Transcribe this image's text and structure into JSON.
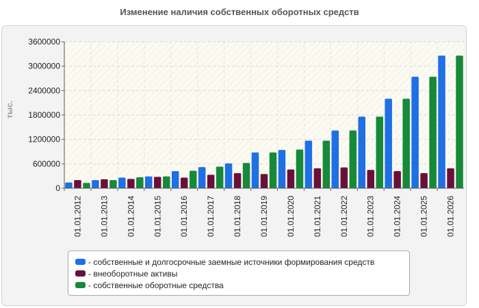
{
  "chart_data": {
    "type": "bar",
    "title": "Изменение наличия собственных оборотных средств",
    "ylabel": "тыс.",
    "xlabel": "",
    "ylim": [
      0,
      3600000
    ],
    "yticks": [
      0,
      600000,
      1200000,
      1800000,
      2400000,
      3000000,
      3600000
    ],
    "grid": true,
    "legend_position": "bottom",
    "categories": [
      "01.01.2012",
      "01.01.2013",
      "01.01.2014",
      "01.01.2015",
      "01.01.2016",
      "01.01.2017",
      "01.01.2018",
      "01.01.2019",
      "01.01.2020",
      "01.01.2021",
      "01.01.2022",
      "01.01.2023",
      "01.01.2024",
      "01.01.2025",
      "01.01.2026"
    ],
    "series": [
      {
        "name": "- собственные и долгосрочные заемные источники формирования средств",
        "color": "#1f6fe5",
        "values": [
          140000,
          200000,
          260000,
          290000,
          420000,
          520000,
          610000,
          880000,
          940000,
          1170000,
          1420000,
          1760000,
          2200000,
          2740000,
          3260000
        ]
      },
      {
        "name": "- внеоборотные активы",
        "color": "#6b0f3a",
        "values": [
          200000,
          220000,
          230000,
          280000,
          260000,
          330000,
          370000,
          350000,
          460000,
          490000,
          510000,
          450000,
          420000,
          370000,
          490000
        ]
      },
      {
        "name": "- собственные оборотные средства",
        "color": "#16893a",
        "values": [
          130000,
          200000,
          270000,
          290000,
          430000,
          530000,
          620000,
          880000,
          950000,
          1170000,
          1420000,
          1760000,
          2200000,
          2740000,
          3260000
        ]
      }
    ]
  }
}
